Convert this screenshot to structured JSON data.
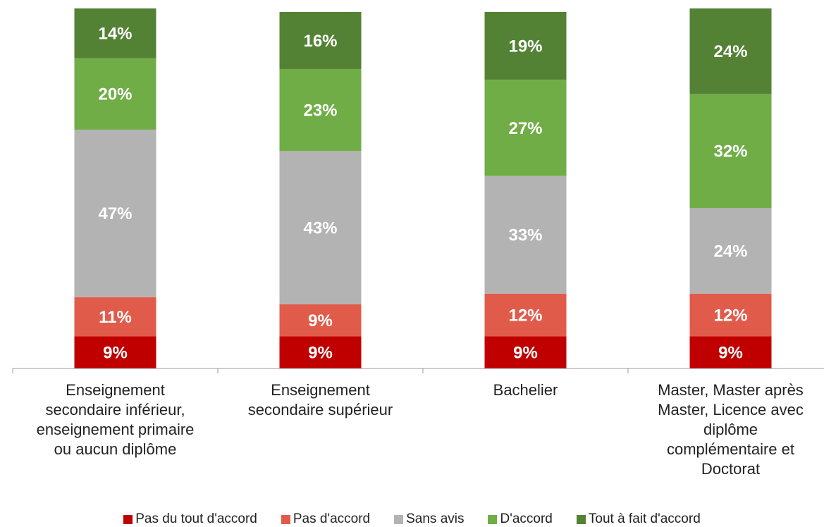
{
  "chart_data": {
    "type": "stacked_bar",
    "categories": [
      "Enseignement\nsecondaire inférieur,\nenseignement primaire\nou aucun diplôme",
      "Enseignement\nsecondaire supérieur",
      "Bachelier",
      "Master, Master après\nMaster,  Licence avec\ndiplôme\ncomplémentaire et\nDoctorat"
    ],
    "series": [
      {
        "name": "Pas du tout d'accord",
        "color": "#c00000",
        "values": [
          9,
          9,
          9,
          9
        ],
        "value_labels": [
          "9%",
          "9%",
          "9%",
          "9%"
        ]
      },
      {
        "name": "Pas d'accord",
        "color": "#e15b4b",
        "values": [
          11,
          9,
          12,
          12
        ],
        "value_labels": [
          "11%",
          "9%",
          "12%",
          "12%"
        ]
      },
      {
        "name": "Sans avis",
        "color": "#b3b3b3",
        "values": [
          47,
          43,
          33,
          24
        ],
        "value_labels": [
          "47%",
          "43%",
          "33%",
          "24%"
        ]
      },
      {
        "name": "D'accord",
        "color": "#70ad47",
        "values": [
          20,
          23,
          27,
          32
        ],
        "value_labels": [
          "20%",
          "23%",
          "27%",
          "32%"
        ]
      },
      {
        "name": "Tout à fait d'accord",
        "color": "#548235",
        "values": [
          14,
          16,
          19,
          24
        ],
        "value_labels": [
          "14%",
          "16%",
          "19%",
          "24%"
        ]
      }
    ],
    "ylim": [
      0,
      100
    ],
    "legend": "bottom"
  }
}
